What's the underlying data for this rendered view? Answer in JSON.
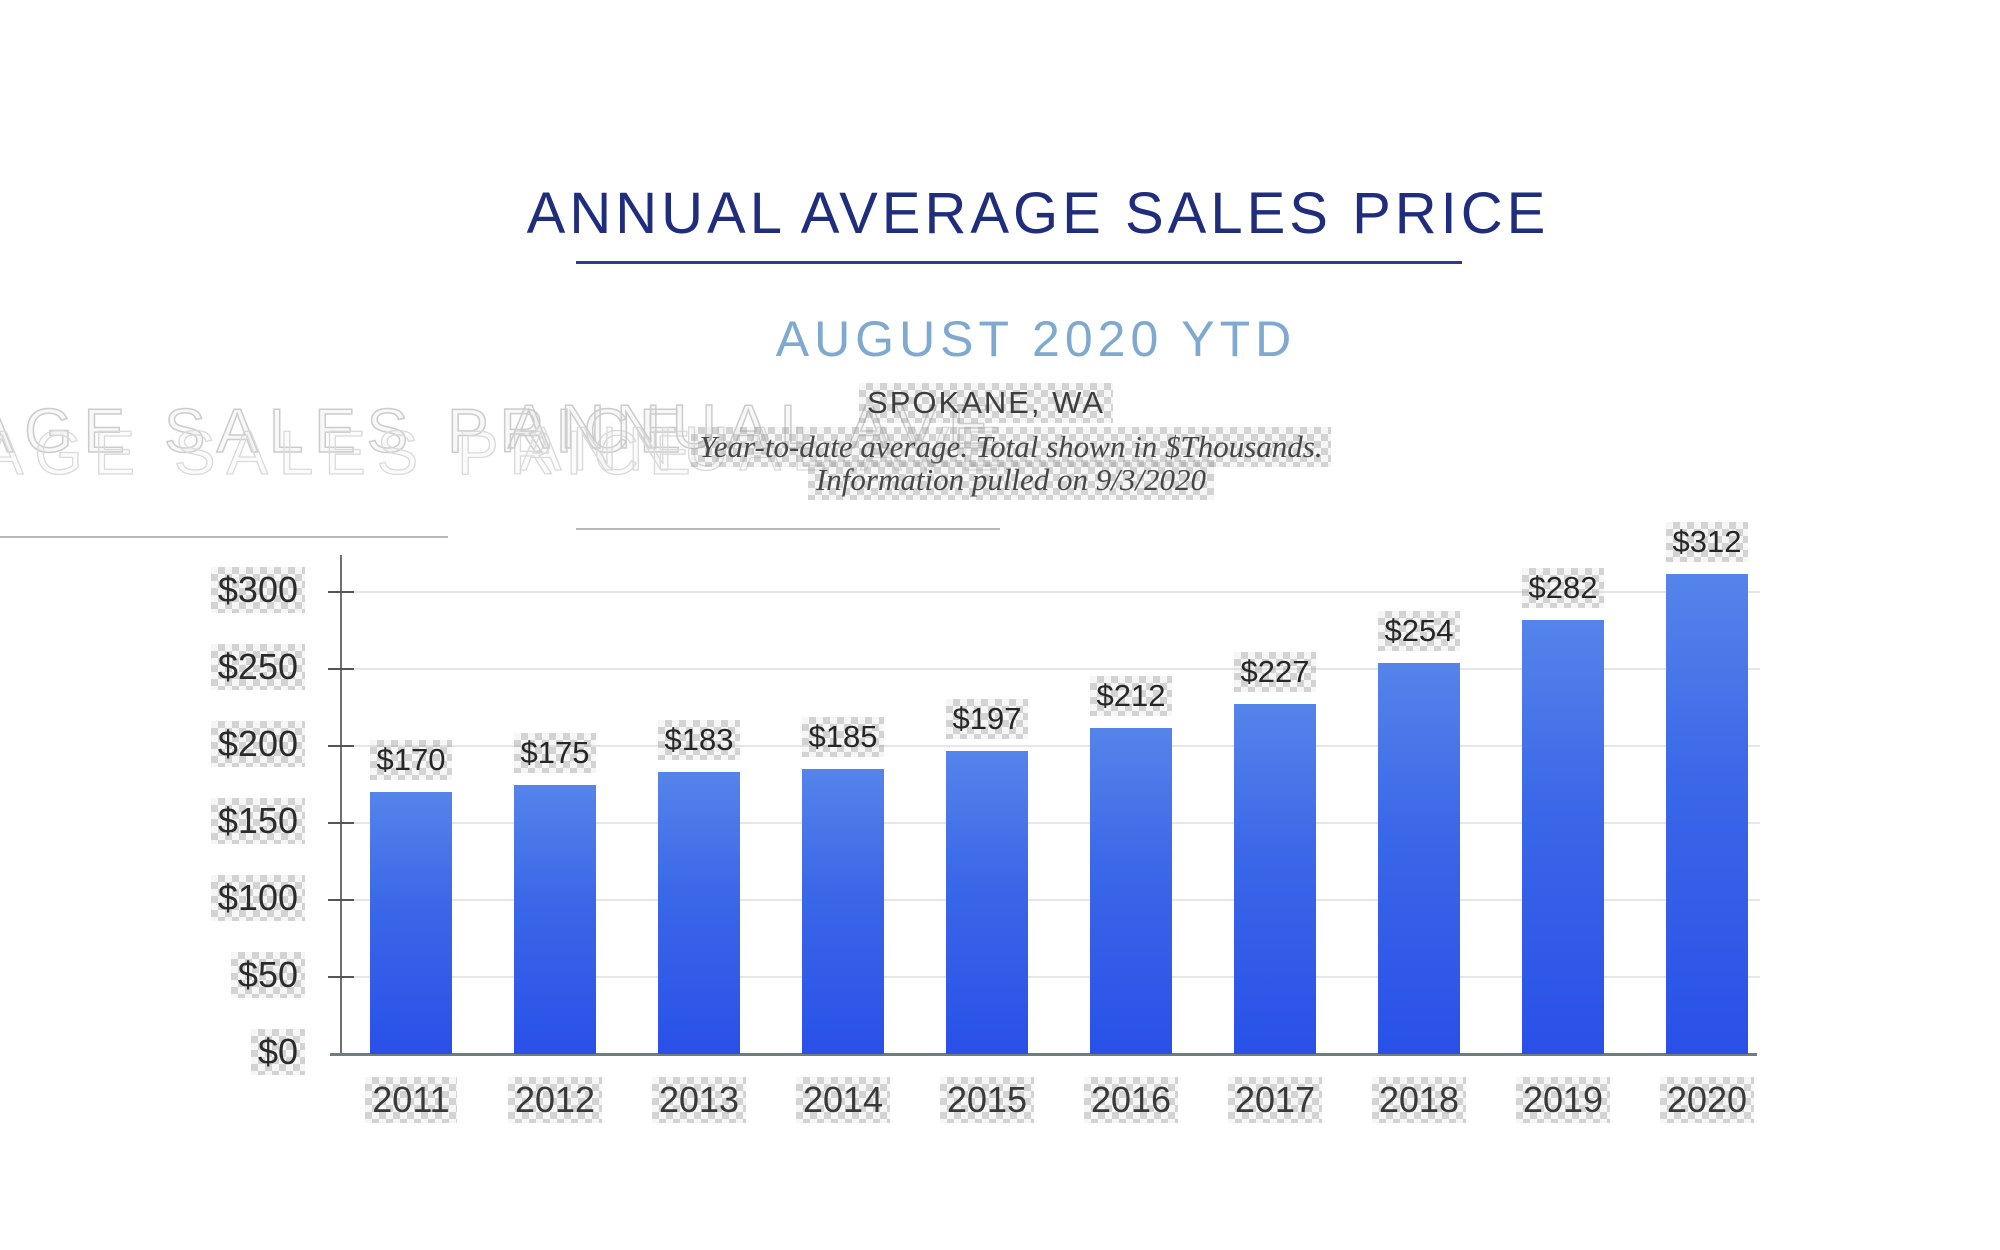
{
  "header": {
    "title": "ANNUAL AVERAGE SALES PRICE",
    "subtitle": "AUGUST 2020 YTD",
    "location": "SPOKANE, WA",
    "note_line1": "Year-to-date average.  Total shown in $Thousands.",
    "note_line2": "Information pulled on 9/3/2020"
  },
  "ghost": {
    "fragment_left": "AGE SALES PRICE",
    "fragment_right": "ANNUAL AVE"
  },
  "colors": {
    "title_navy": "#1f2d7c",
    "subtitle_blue": "#7fa9cf",
    "bar_top": "#5584ea",
    "bar_bottom": "#2a50e8",
    "axis": "#6e7d7d",
    "gridline": "#e6e6e6"
  },
  "chart_data": {
    "type": "bar",
    "title": "ANNUAL AVERAGE SALES PRICE",
    "subtitle": "AUGUST 2020 YTD",
    "region": "SPOKANE, WA",
    "categories": [
      "2011",
      "2012",
      "2013",
      "2014",
      "2015",
      "2016",
      "2017",
      "2018",
      "2019",
      "2020"
    ],
    "values": [
      170,
      175,
      183,
      185,
      197,
      212,
      227,
      254,
      282,
      312
    ],
    "value_labels": [
      "$170",
      "$175",
      "$183",
      "$185",
      "$197",
      "$212",
      "$227",
      "$254",
      "$282",
      "$312"
    ],
    "xlabel": "",
    "ylabel": "",
    "units": "$Thousands",
    "ylim": [
      0,
      325
    ],
    "y_ticks": [
      0,
      50,
      100,
      150,
      200,
      250,
      300
    ],
    "y_tick_labels": [
      "$0",
      "$50",
      "$100",
      "$150",
      "$200",
      "$250",
      "$300"
    ],
    "grid": true,
    "legend": false
  }
}
